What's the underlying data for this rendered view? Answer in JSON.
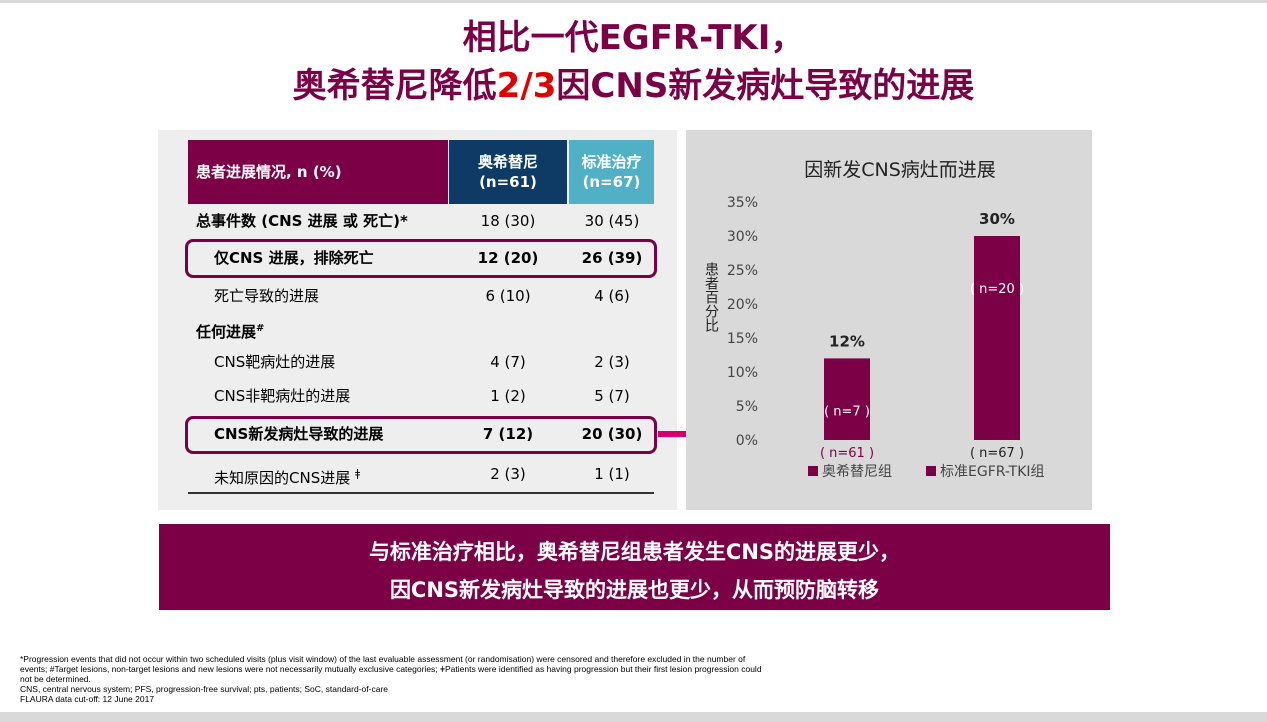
{
  "title": {
    "line1": "相比一代EGFR-TKI，",
    "line2_prefix": "奥希替尼降低",
    "line2_highlight": "2/3",
    "line2_suffix": "因CNS新发病灶导致的进展"
  },
  "table": {
    "header_label": "患者进展情况, n (%)",
    "col_a": {
      "name": "奥希替尼",
      "n": "(n=61)"
    },
    "col_b": {
      "name": "标准治疗",
      "n": "(n=67)"
    },
    "rows": [
      {
        "label": "总事件数 (CNS 进展 或 死亡)*",
        "a": "18 (30)",
        "b": "30 (45)"
      },
      {
        "label": "仅CNS 进展，排除死亡",
        "a": "12 (20)",
        "b": "26 (39)"
      },
      {
        "label": "死亡导致的进展",
        "a": "6 (10)",
        "b": "4 (6)"
      },
      {
        "label": "任何进展",
        "sup": "#",
        "a": "",
        "b": ""
      },
      {
        "label": "CNS靶病灶的进展",
        "a": "4 (7)",
        "b": "2 (3)"
      },
      {
        "label": "CNS非靶病灶的进展",
        "a": "1 (2)",
        "b": "5 (7)"
      },
      {
        "label": "CNS新发病灶导致的进展",
        "a": "7 (12)",
        "b": "20 (30)"
      },
      {
        "label": "未知原因的CNS进展",
        "sup": "ǂ",
        "a": "2 (3)",
        "b": "1 (1)"
      }
    ]
  },
  "chart_data": {
    "type": "bar",
    "title": "因新发CNS病灶而进展",
    "ylabel": "患者百分比",
    "ylim": [
      0,
      35
    ],
    "yticks": [
      "0%",
      "5%",
      "10%",
      "15%",
      "20%",
      "25%",
      "30%",
      "35%"
    ],
    "categories": [
      "奥希替尼组",
      "标准EGFR-TKI组"
    ],
    "values": [
      12,
      30
    ],
    "value_labels": [
      "12%",
      "30%"
    ],
    "inner_labels": [
      "( n=7 )",
      "( n=20 )"
    ],
    "n_labels": [
      "( n=61 )",
      "( n=67 )"
    ],
    "legend": [
      "奥希替尼组",
      "标准EGFR-TKI组"
    ],
    "bar_color": "#7b0046"
  },
  "banner": {
    "line1": "与标准治疗相比，奥希替尼组患者发生CNS的进展更少，",
    "line2": "因CNS新发病灶导致的进展也更少，从而预防脑转移"
  },
  "footnotes": {
    "line1": "*Progression events that did not occur within two scheduled visits (plus visit window) of the last evaluable assessment (or randomisation) were censored and therefore excluded in the number of",
    "line2": "events; #Target lesions, non-target lesions and new lesions were not necessarily mutually exclusive categories; ǂPatients were identified as having progression but their first lesion progression could",
    "line3": "not be determined.",
    "line4": "CNS, central nervous system; PFS, progression-free survival; pts, patients; SoC, standard-of-care",
    "line5": "FLAURA data cut-off: 12 June 2017"
  },
  "colors": {
    "brand": "#7b0046",
    "navy": "#0e3a66",
    "teal": "#4fb0c6",
    "accent_red": "#e00000"
  }
}
